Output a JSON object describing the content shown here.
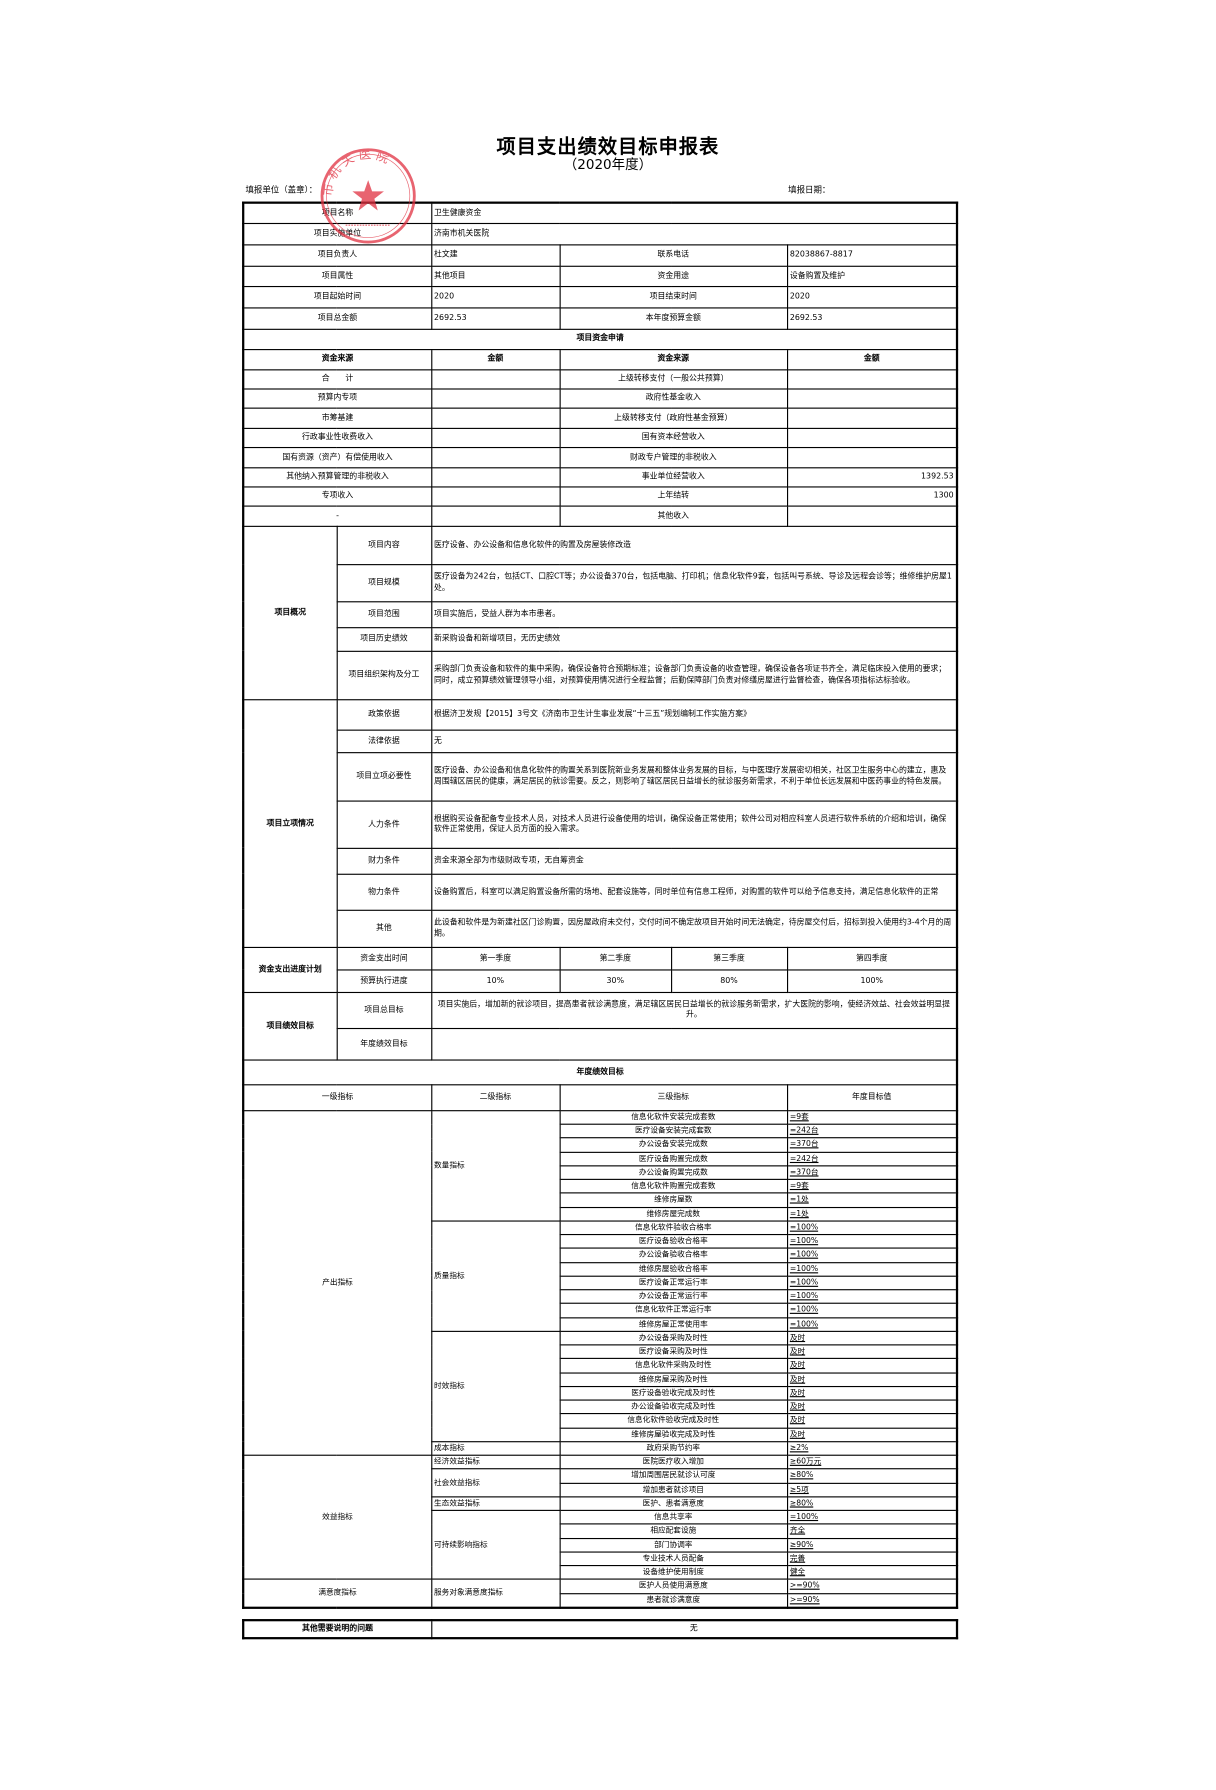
{
  "header": {
    "title": "项目支出绩效目标申报表",
    "year": "（2020年度）",
    "fill_unit_label": "填报单位（盖章）：",
    "fill_date_label": "填报日期：",
    "stamp_text": "市机关医院",
    "stamp_color": "#e03040"
  },
  "info": {
    "name_label": "项目名称",
    "name": "卫生健康资金",
    "unit_label": "项目实施单位",
    "unit": "济南市机关医院",
    "owner_label": "项目负责人",
    "owner": "杜文建",
    "phone_label": "联系电话",
    "phone": "82038867-8817",
    "attr_label": "项目属性",
    "attr": "其他项目",
    "use_label": "资金用途",
    "use": "设备购置及维护",
    "start_label": "项目起始时间",
    "start": "2020",
    "end_label": "项目结束时间",
    "end": "2020",
    "total_label": "项目总金额",
    "total": "2692.53",
    "budget_label": "本年度预算金额",
    "budget": "2692.53"
  },
  "funds": {
    "section_title": "项目资金申请",
    "col_source": "资金来源",
    "col_amount": "金额",
    "rows": [
      {
        "left": "合　　计",
        "left_amount": "",
        "right": "上级转移支付（一般公共预算）",
        "right_amount": ""
      },
      {
        "left": "预算内专项",
        "left_amount": "",
        "right": "政府性基金收入",
        "right_amount": ""
      },
      {
        "left": "市筹基建",
        "left_amount": "",
        "right": "上级转移支付（政府性基金预算）",
        "right_amount": ""
      },
      {
        "left": "行政事业性收费收入",
        "left_amount": "",
        "right": "国有资本经营收入",
        "right_amount": ""
      },
      {
        "left": "国有资源（资产）有偿使用收入",
        "left_amount": "",
        "right": "财政专户管理的非税收入",
        "right_amount": ""
      },
      {
        "left": "其他纳入预算管理的非税收入",
        "left_amount": "",
        "right": "事业单位经营收入",
        "right_amount": "1392.53"
      },
      {
        "left": "专项收入",
        "left_amount": "",
        "right": "上年结转",
        "right_amount": "1300"
      },
      {
        "left": "-",
        "left_amount": "",
        "right": "其他收入",
        "right_amount": ""
      }
    ]
  },
  "overview": {
    "label": "项目概况",
    "rows": [
      {
        "label": "项目内容",
        "text": "医疗设备、办公设备和信息化软件的购置及房屋装修改造"
      },
      {
        "label": "项目规模",
        "text": "医疗设备为242台，包括CT、口腔CT等；办公设备370台，包括电脑、打印机；信息化软件9套，包括叫号系统、导诊及远程会诊等；维修维护房屋1处。"
      },
      {
        "label": "项目范围",
        "text": "项目实施后，受益人群为本市患者。"
      },
      {
        "label": "项目历史绩效",
        "text": "新采购设备和新增项目，无历史绩效"
      },
      {
        "label": "项目组织架构及分工",
        "text": "采购部门负责设备和软件的集中采购，确保设备符合预期标准；设备部门负责设备的收查管理，确保设备各项证书齐全，满足临床投入使用的要求；同时，成立预算绩效管理领导小组，对预算使用情况进行全程监督；后勤保障部门负责对修缮房屋进行监督检查，确保各项指标达标验收。"
      }
    ]
  },
  "approval": {
    "label": "项目立项情况",
    "rows": [
      {
        "label": "政策依据",
        "text": "根据济卫发规【2015】3号文《济南市卫生计生事业发展“十三五”规划编制工作实施方案》"
      },
      {
        "label": "法律依据",
        "text": "无"
      },
      {
        "label": "项目立项必要性",
        "text": "医疗设备、办公设备和信息化软件的购置关系到医院新业务发展和整体业务发展的目标，与中医理疗发展密切相关，社区卫生服务中心的建立，惠及周围辖区居民的健康，满足居民的就诊需要。反之，则影响了辖区居民日益增长的就诊服务新需求，不利于单位长远发展和中医药事业的特色发展。"
      },
      {
        "label": "人力条件",
        "text": "根据购买设备配备专业技术人员，对技术人员进行设备使用的培训，确保设备正常使用；软件公司对相应科室人员进行软件系统的介绍和培训，确保软件正常使用，保证人员方面的投入需求。"
      },
      {
        "label": "财力条件",
        "text": "资金来源全部为市级财政专项，无自筹资金"
      },
      {
        "label": "物力条件",
        "text": "设备购置后，科室可以满足购置设备所需的场地、配套设施等，同时单位有信息工程师，对购置的软件可以给予信息支持，满足信息化软件的正常"
      },
      {
        "label": "其他",
        "text": "此设备和软件是为新建社区门诊购置，因房屋政府未交付，交付时间不确定故项目开始时间无法确定，待房屋交付后，招标到投入使用约3-4个月的周期。"
      }
    ]
  },
  "schedule": {
    "label": "资金支出进度计划",
    "time_label": "资金支出时间",
    "progress_label": "预算执行进度",
    "quarters": [
      "第一季度",
      "第二季度",
      "第三季度",
      "第四季度"
    ],
    "progress": [
      "10%",
      "30%",
      "80%",
      "100%"
    ]
  },
  "goals": {
    "label": "项目绩效目标",
    "overall_label": "项目总目标",
    "overall": "项目实施后，增加新的就诊项目，提高患者就诊满意度，满足辖区居民日益增长的就诊服务新需求，扩大医院的影响，使经济效益、社会效益明显提升。",
    "annual_label": "年度绩效目标",
    "annual": ""
  },
  "indicators": {
    "section_title": "年度绩效目标",
    "headers": [
      "一级指标",
      "二级指标",
      "三级指标",
      "年度目标值"
    ],
    "groups": [
      {
        "level1": "产出指标",
        "subs": [
          {
            "level2": "数量指标",
            "items": [
              [
                "信息化软件安装完成套数",
                "=9套"
              ],
              [
                "医疗设备安装完成套数",
                "=242台"
              ],
              [
                "办公设备安装完成数",
                "=370台"
              ],
              [
                "医疗设备购置完成数",
                "=242台"
              ],
              [
                "办公设备购置完成数",
                "=370台"
              ],
              [
                "信息化软件购置完成套数",
                "=9套"
              ],
              [
                "维修房屋数",
                "=1处"
              ],
              [
                "维修房屋完成数",
                "=1处"
              ]
            ]
          },
          {
            "level2": "质量指标",
            "items": [
              [
                "信息化软件验收合格率",
                "=100%"
              ],
              [
                "医疗设备验收合格率",
                "=100%"
              ],
              [
                "办公设备验收合格率",
                "=100%"
              ],
              [
                "维修房屋验收合格率",
                "=100%"
              ],
              [
                "医疗设备正常运行率",
                "=100%"
              ],
              [
                "办公设备正常运行率",
                "=100%"
              ],
              [
                "信息化软件正常运行率",
                "=100%"
              ],
              [
                "维修房屋正常使用率",
                "=100%"
              ]
            ]
          },
          {
            "level2": "时效指标",
            "items": [
              [
                "办公设备采购及时性",
                "及时"
              ],
              [
                "医疗设备采购及时性",
                "及时"
              ],
              [
                "信息化软件采购及时性",
                "及时"
              ],
              [
                "维修房屋采购及时性",
                "及时"
              ],
              [
                "医疗设备验收完成及时性",
                "及时"
              ],
              [
                "办公设备验收完成及时性",
                "及时"
              ],
              [
                "信息化软件验收完成及时性",
                "及时"
              ],
              [
                "维修房屋验收完成及时性",
                "及时"
              ]
            ]
          },
          {
            "level2": "成本指标",
            "items": [
              [
                "政府采购节约率",
                "≥2%"
              ]
            ]
          }
        ]
      },
      {
        "level1": "效益指标",
        "subs": [
          {
            "level2": "经济效益指标",
            "items": [
              [
                "医院医疗收入增加",
                "≥60万元"
              ]
            ]
          },
          {
            "level2": "社会效益指标",
            "items": [
              [
                "增加周围居民就诊认可度",
                "≥80%"
              ],
              [
                "增加患者就诊项目",
                "≥5项"
              ]
            ]
          },
          {
            "level2": "生态效益指标",
            "items": [
              [
                "医护、患者满意度",
                "≥80%"
              ]
            ]
          },
          {
            "level2": "可持续影响指标",
            "items": [
              [
                "信息共享率",
                "=100%"
              ],
              [
                "相应配套设施",
                "齐全"
              ],
              [
                "部门协调率",
                "≥90%"
              ],
              [
                "专业技术人员配备",
                "完善"
              ],
              [
                "设备维护使用制度",
                "健全"
              ]
            ]
          }
        ]
      },
      {
        "level1": "满意度指标",
        "subs": [
          {
            "level2": "服务对象满意度指标",
            "items": [
              [
                "医护人员使用满意度",
                ">=90%"
              ],
              [
                "患者就诊满意度",
                ">=90%"
              ]
            ]
          }
        ]
      }
    ]
  },
  "other": {
    "label": "其他需要说明的问题",
    "value": "无"
  }
}
